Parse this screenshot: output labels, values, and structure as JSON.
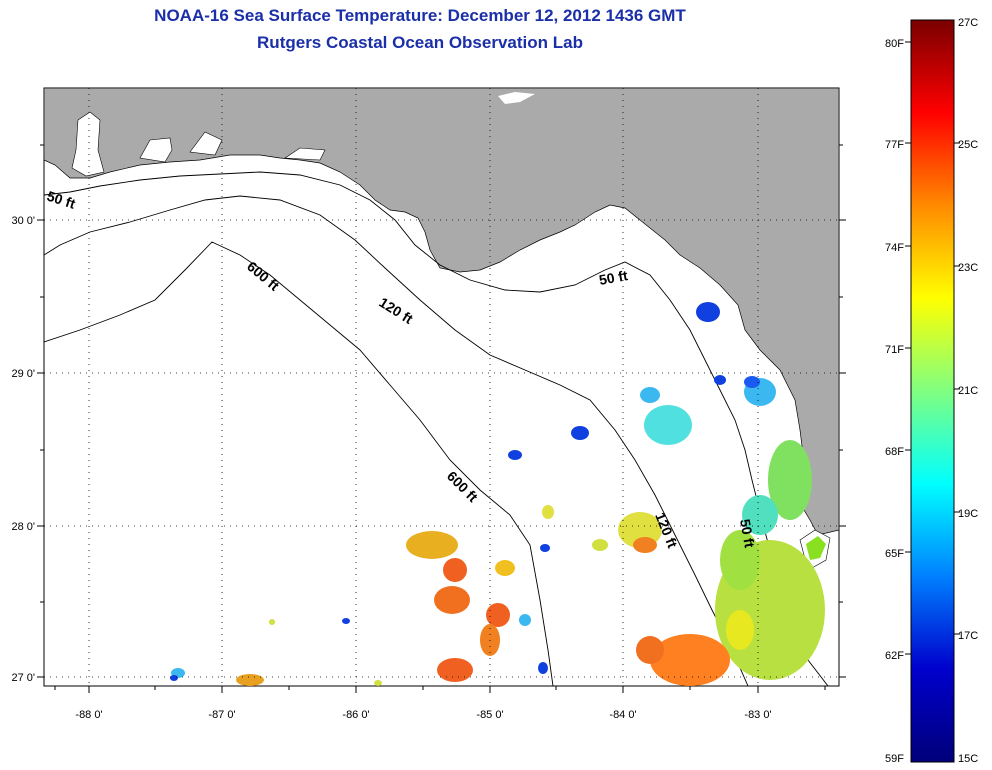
{
  "header": {
    "title": "NOAA-16 Sea Surface Temperature:  December 12, 2012 1436 GMT",
    "subtitle": "Rutgers Coastal Ocean Observation Lab"
  },
  "map": {
    "lat_labels": [
      "30 0'",
      "29 0'",
      "28 0'",
      "27 0'"
    ],
    "lon_labels": [
      "-88 0'",
      "-87 0'",
      "-86 0'",
      "-85 0'",
      "-84 0'",
      "-83 0'"
    ],
    "contours": {
      "c50_west": "50 ft",
      "c50_east": "50 ft",
      "c120_north": "120 ft",
      "c120_south": "120 ft",
      "c600_north": "600 ft",
      "c600_south": "600 ft"
    }
  },
  "colorbar": {
    "celsius": [
      "27C",
      "25C",
      "23C",
      "21C",
      "19C",
      "17C",
      "15C"
    ],
    "fahrenheit": [
      "80F",
      "77F",
      "74F",
      "71F",
      "68F",
      "65F",
      "62F",
      "59F"
    ],
    "colors": [
      "#7a0000",
      "#ff0000",
      "#ff8a00",
      "#ffff00",
      "#80ff80",
      "#00ffff",
      "#0080ff",
      "#0000cc",
      "#00007a"
    ]
  }
}
